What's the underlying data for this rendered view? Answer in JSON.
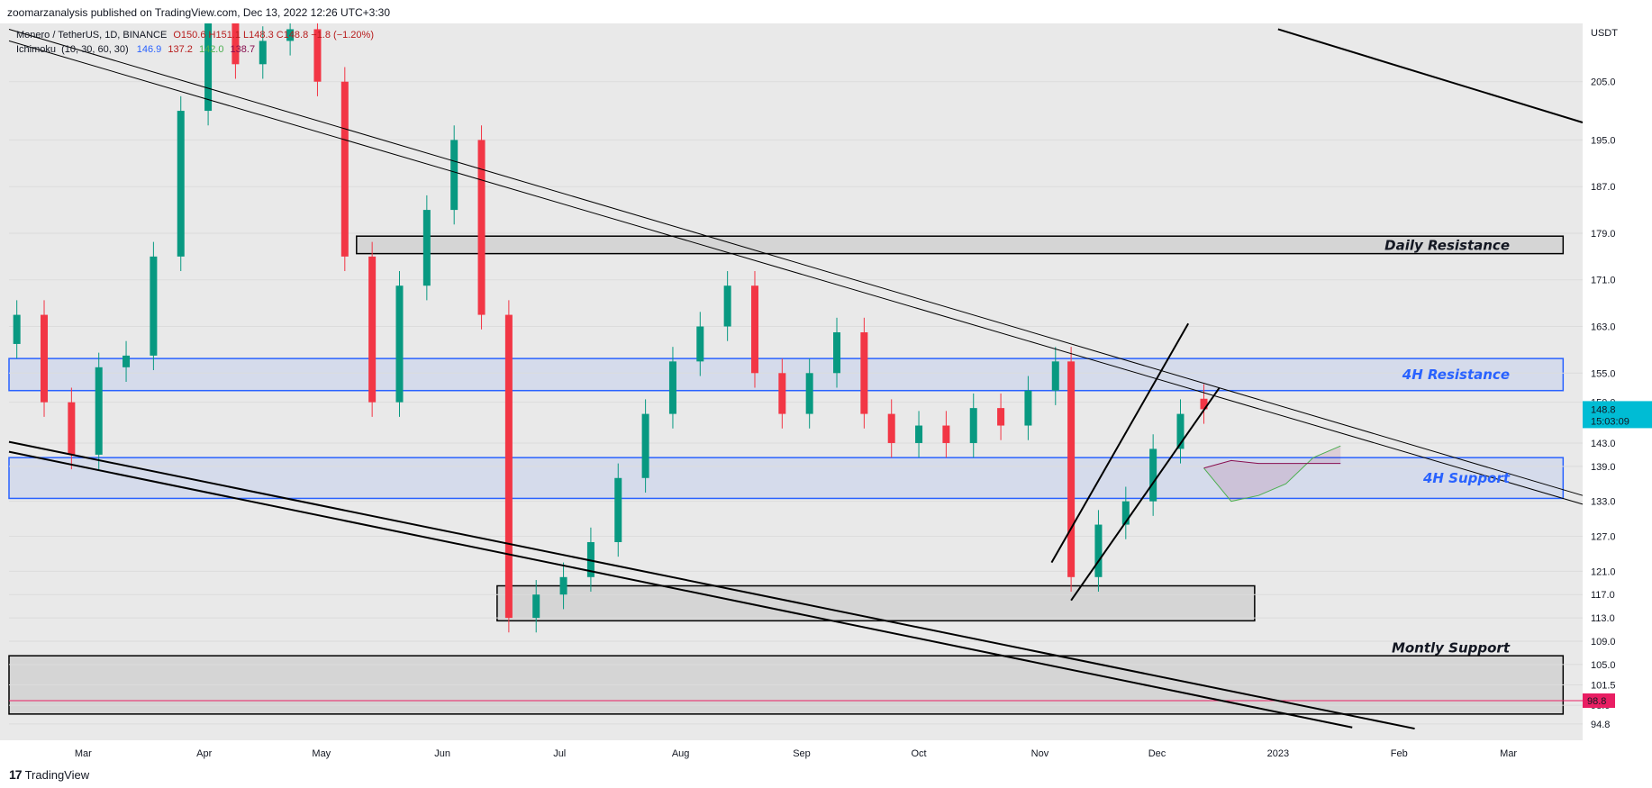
{
  "header": {
    "published": "zoomarzanalysis published on TradingView.com, Dec 13, 2022 12:26 UTC+3:30"
  },
  "footer": {
    "brand_mark": "17",
    "brand": "TradingView"
  },
  "colors": {
    "up": "#089981",
    "down": "#f23645",
    "background": "#e9e9e9",
    "zone_blue": "#2962ff",
    "tenkan": "#2962ff",
    "kijun": "#b71c1c",
    "span_a": "#4caf50",
    "span_b": "#880e4f",
    "price_tag": "#00bcd4",
    "support_tag": "#e91e63"
  },
  "legend": {
    "symbol": "Monero / TetherUS, 1D, BINANCE",
    "ohlc": "O150.6 H151.1 L148.3 C148.8 −1.8 (−1.20%)",
    "indicator": "Ichimoku",
    "params": "(10, 30, 60, 30)",
    "v1": "146.9",
    "v2": "137.2",
    "v3": "142.0",
    "v4": "138.7"
  },
  "axis": {
    "currency": "USDT",
    "price_ticks": [
      "205.0",
      "195.0",
      "187.0",
      "179.0",
      "171.0",
      "163.0",
      "155.0",
      "150.0",
      "143.0",
      "139.0",
      "133.0",
      "127.0",
      "121.0",
      "117.0",
      "113.0",
      "109.0",
      "105.0",
      "101.5",
      "98.0",
      "94.8"
    ],
    "month_ticks": [
      "Mar",
      "Apr",
      "May",
      "Jun",
      "Jul",
      "Aug",
      "Sep",
      "Oct",
      "Nov",
      "Dec",
      "2023",
      "Feb",
      "Mar"
    ]
  },
  "price_tag": {
    "price": "148.8",
    "countdown": "15:03:09"
  },
  "support_tag": {
    "price": "98.8"
  },
  "zones": {
    "daily_resistance": "Daily Resistance",
    "h4_resistance": "4H Resistance",
    "h4_support": "4H Support",
    "monthly_support": "Montly Support"
  },
  "chart_data": {
    "type": "candlestick",
    "symbol": "Monero / TetherUS",
    "timeframe": "1D",
    "exchange": "BINANCE",
    "ylabel": "USDT",
    "x_range": [
      "2022-02-10",
      "2023-03-20"
    ],
    "y_range": [
      92,
      215
    ],
    "last": {
      "open": 150.6,
      "high": 151.1,
      "low": 148.3,
      "close": 148.8,
      "change": -1.8,
      "change_pct": -1.2
    },
    "indicator": {
      "name": "Ichimoku",
      "params": [
        10,
        30,
        60,
        30
      ],
      "values": [
        146.9,
        137.2,
        142.0,
        138.7
      ]
    },
    "zones": [
      {
        "label": "Daily Resistance",
        "from": "2022-05-10",
        "to": "2023-03-15",
        "low": 175.5,
        "high": 178.5
      },
      {
        "label": "4H Resistance",
        "from": "2022-02-10",
        "to": "2023-03-15",
        "low": 152.0,
        "high": 157.5
      },
      {
        "label": "4H Support",
        "from": "2022-02-10",
        "to": "2023-03-15",
        "low": 133.5,
        "high": 140.5
      },
      {
        "label": "",
        "from": "2022-06-15",
        "to": "2022-12-26",
        "low": 112.5,
        "high": 118.5
      },
      {
        "label": "Montly Support",
        "from": "2022-02-10",
        "to": "2023-03-15",
        "low": 96.5,
        "high": 106.5
      }
    ],
    "horizontal_lines": [
      {
        "price": 98.8
      }
    ],
    "trendlines": [
      {
        "width": 1,
        "points": [
          [
            "2022-02-10",
            214
          ],
          [
            "2023-03-20",
            134
          ]
        ]
      },
      {
        "width": 1,
        "points": [
          [
            "2022-02-10",
            212
          ],
          [
            "2023-03-20",
            132.5
          ]
        ]
      },
      {
        "width": 2,
        "points": [
          [
            "2022-02-10",
            143.2
          ],
          [
            "2023-02-05",
            94
          ]
        ]
      },
      {
        "width": 2,
        "points": [
          [
            "2022-02-10",
            141.5
          ],
          [
            "2023-01-20",
            94.2
          ]
        ]
      },
      {
        "width": 2,
        "points": [
          [
            "2023-01-01",
            214
          ],
          [
            "2023-03-20",
            198
          ]
        ]
      },
      {
        "width": 2,
        "points": [
          [
            "2022-11-04",
            122.5
          ],
          [
            "2022-12-09",
            163.5
          ]
        ]
      },
      {
        "width": 2,
        "points": [
          [
            "2022-11-09",
            116
          ],
          [
            "2022-12-17",
            152.5
          ]
        ]
      }
    ],
    "candles": [
      [
        "2022-02-12",
        160,
        165
      ],
      [
        "2022-02-19",
        165,
        150
      ],
      [
        "2022-02-26",
        150,
        141
      ],
      [
        "2022-03-05",
        141,
        156
      ],
      [
        "2022-03-12",
        156,
        158
      ],
      [
        "2022-03-19",
        158,
        175
      ],
      [
        "2022-03-26",
        175,
        200
      ],
      [
        "2022-04-02",
        200,
        215
      ],
      [
        "2022-04-09",
        215,
        208
      ],
      [
        "2022-04-16",
        208,
        212
      ],
      [
        "2022-04-23",
        212,
        214
      ],
      [
        "2022-04-30",
        214,
        205
      ],
      [
        "2022-05-07",
        205,
        175
      ],
      [
        "2022-05-14",
        175,
        150
      ],
      [
        "2022-05-21",
        150,
        170
      ],
      [
        "2022-05-28",
        170,
        183
      ],
      [
        "2022-06-04",
        183,
        195
      ],
      [
        "2022-06-11",
        195,
        165
      ],
      [
        "2022-06-18",
        165,
        113
      ],
      [
        "2022-06-25",
        113,
        117
      ],
      [
        "2022-07-02",
        117,
        120
      ],
      [
        "2022-07-09",
        120,
        126
      ],
      [
        "2022-07-16",
        126,
        137
      ],
      [
        "2022-07-23",
        137,
        148
      ],
      [
        "2022-07-30",
        148,
        157
      ],
      [
        "2022-08-06",
        157,
        163
      ],
      [
        "2022-08-13",
        163,
        170
      ],
      [
        "2022-08-20",
        170,
        155
      ],
      [
        "2022-08-27",
        155,
        148
      ],
      [
        "2022-09-03",
        148,
        155
      ],
      [
        "2022-09-10",
        155,
        162
      ],
      [
        "2022-09-17",
        162,
        148
      ],
      [
        "2022-09-24",
        148,
        143
      ],
      [
        "2022-10-01",
        143,
        146
      ],
      [
        "2022-10-08",
        146,
        143
      ],
      [
        "2022-10-15",
        143,
        149
      ],
      [
        "2022-10-22",
        149,
        146
      ],
      [
        "2022-10-29",
        146,
        152
      ],
      [
        "2022-11-05",
        152,
        157
      ],
      [
        "2022-11-09",
        157,
        120
      ],
      [
        "2022-11-16",
        120,
        129
      ],
      [
        "2022-11-23",
        129,
        133
      ],
      [
        "2022-11-30",
        133,
        142
      ],
      [
        "2022-12-07",
        142,
        148
      ],
      [
        "2022-12-13",
        150.6,
        148.8
      ]
    ],
    "ichimoku_cloud_projection": [
      [
        "2022-12-13",
        138.7,
        138.7
      ],
      [
        "2022-12-20",
        133,
        140
      ],
      [
        "2022-12-27",
        134,
        139.5
      ],
      [
        "2023-01-03",
        136,
        139.5
      ],
      [
        "2023-01-10",
        140.5,
        139.5
      ],
      [
        "2023-01-17",
        142.5,
        139.5
      ]
    ]
  }
}
